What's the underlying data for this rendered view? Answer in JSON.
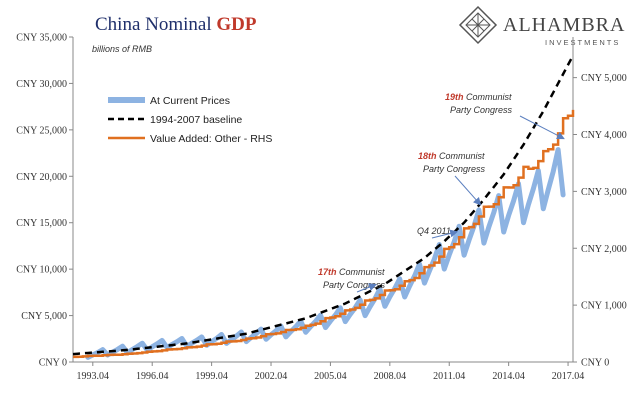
{
  "brand": {
    "name": "ALHAMBRA",
    "subtitle": "INVESTMENTS",
    "logo_icon": "alhambra-diamond-logo"
  },
  "chart_data": {
    "type": "line",
    "title_part1": "China Nominal ",
    "title_part2": "GDP",
    "subtitle": "billions of RMB",
    "colors": {
      "title": "#1f2f6b",
      "title_accent": "#c0392b",
      "current_prices": "#8db3e2",
      "baseline": "#000000",
      "value_added": "#e07020",
      "annotation_accent": "#c0392b",
      "arrow": "#5b7fbf"
    },
    "xlim": [
      1992.25,
      2017.5
    ],
    "x_ticks": [
      {
        "x": 1993.25,
        "label": "1993.04"
      },
      {
        "x": 1996.25,
        "label": "1996.04"
      },
      {
        "x": 1999.25,
        "label": "1999.04"
      },
      {
        "x": 2002.25,
        "label": "2002.04"
      },
      {
        "x": 2005.25,
        "label": "2005.04"
      },
      {
        "x": 2008.25,
        "label": "2008.04"
      },
      {
        "x": 2011.25,
        "label": "2011.04"
      },
      {
        "x": 2014.25,
        "label": "2014.04"
      },
      {
        "x": 2017.25,
        "label": "2017.04"
      }
    ],
    "y_left": {
      "ylim": [
        0,
        35000
      ],
      "ticks": [
        {
          "v": 0,
          "label": "CNY 0"
        },
        {
          "v": 5000,
          "label": "CNY 5,000"
        },
        {
          "v": 10000,
          "label": "CNY 10,000"
        },
        {
          "v": 15000,
          "label": "CNY 15,000"
        },
        {
          "v": 20000,
          "label": "CNY 20,000"
        },
        {
          "v": 25000,
          "label": "CNY 25,000"
        },
        {
          "v": 30000,
          "label": "CNY 30,000"
        },
        {
          "v": 35000,
          "label": "CNY 35,000"
        }
      ]
    },
    "y_right": {
      "ylim": [
        0,
        5714.3
      ],
      "ticks": [
        {
          "v": 0,
          "label": "CNY 0"
        },
        {
          "v": 1000,
          "label": "CNY 1,000"
        },
        {
          "v": 2000,
          "label": "CNY 2,000"
        },
        {
          "v": 3000,
          "label": "CNY 3,000"
        },
        {
          "v": 4000,
          "label": "CNY 4,000"
        },
        {
          "v": 5000,
          "label": "CNY 5,000"
        }
      ]
    },
    "legend_position": "top-left",
    "series": [
      {
        "name": "At Current Prices",
        "axis": "left",
        "style": "thick",
        "quarterly_min": {
          "x": [
            1993.0,
            1995.0,
            1997.0,
            1999.0,
            2001.0,
            2003.0,
            2005.0,
            2007.0,
            2008.0,
            2009.0,
            2010.0,
            2011.0,
            2012.0,
            2013.0,
            2014.0,
            2015.0,
            2016.0,
            2017.0
          ],
          "y": [
            500,
            1000,
            1550,
            1800,
            2200,
            2700,
            3700,
            5000,
            6000,
            7000,
            8500,
            10000,
            11500,
            12800,
            14000,
            15000,
            16500,
            18000
          ]
        },
        "quarterly_max": {
          "x": [
            1993.0,
            1995.0,
            1997.0,
            1999.0,
            2001.0,
            2003.0,
            2005.0,
            2007.0,
            2008.0,
            2009.0,
            2010.0,
            2011.0,
            2012.0,
            2013.0,
            2014.0,
            2015.0,
            2016.0,
            2017.0
          ],
          "y": [
            1050,
            1800,
            2400,
            2750,
            3300,
            3950,
            5200,
            6900,
            8200,
            9200,
            11000,
            13200,
            15100,
            16800,
            18300,
            19500,
            21000,
            23500
          ]
        }
      },
      {
        "name": "1994-2007 baseline",
        "axis": "left",
        "style": "dashed",
        "x": [
          1992.25,
          1995.0,
          1998.0,
          2001.0,
          2004.0,
          2006.0,
          2008.0,
          2010.0,
          2011.0,
          2012.0,
          2013.0,
          2014.0,
          2015.0,
          2016.0,
          2017.5
        ],
        "y": [
          850,
          1300,
          2000,
          3050,
          4700,
          6300,
          8400,
          11200,
          13000,
          15000,
          17500,
          20200,
          23400,
          27000,
          33000
        ]
      },
      {
        "name": "Value Added: Other - RHS",
        "axis": "right",
        "style": "solid",
        "x": [
          1992.25,
          1995.0,
          1998.0,
          2001.0,
          2004.0,
          2006.0,
          2008.0,
          2009.0,
          2010.0,
          2011.0,
          2012.0,
          2013.0,
          2014.0,
          2015.0,
          2016.0,
          2017.0,
          2017.5
        ],
        "y": [
          90,
          140,
          250,
          400,
          620,
          880,
          1220,
          1380,
          1620,
          1930,
          2280,
          2650,
          2980,
          3330,
          3600,
          4160,
          4500
        ]
      }
    ],
    "annotations": [
      {
        "accent": "17th",
        "line1": " Communist",
        "line2": "Party Congress",
        "arrow_to": [
          2007.5,
          8300
        ]
      },
      {
        "accent": "18th",
        "line1": " Communist",
        "line2": "Party Congress",
        "arrow_to": [
          2012.8,
          17000
        ]
      },
      {
        "accent": "19th",
        "line1": " Communist",
        "line2": "Party Congress",
        "arrow_to": [
          2017.0,
          24100
        ]
      },
      {
        "accent": "",
        "line1": "Q4 2011",
        "line2": "",
        "arrow_to": [
          2011.6,
          14000
        ]
      }
    ]
  }
}
